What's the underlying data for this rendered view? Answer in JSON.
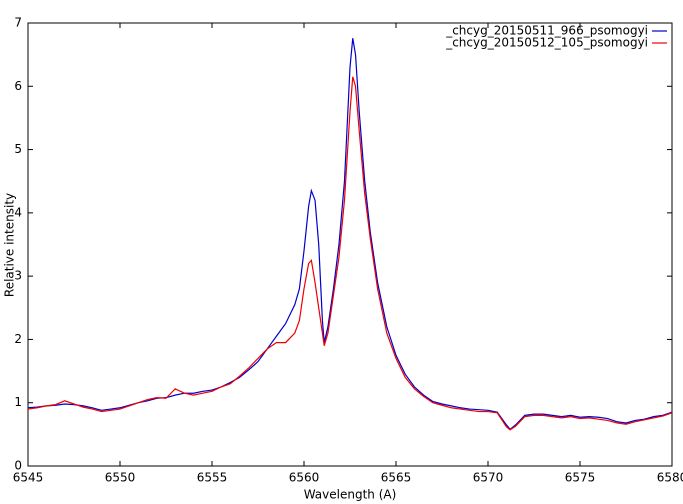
{
  "chart_data": {
    "type": "line",
    "xlabel": "Wavelength (A)",
    "ylabel": "Relative intensity",
    "x": [
      6545,
      6545.5,
      6546,
      6546.5,
      6547,
      6547.5,
      6548,
      6548.5,
      6549,
      6549.5,
      6550,
      6550.5,
      6551,
      6551.5,
      6552,
      6552.5,
      6553,
      6553.5,
      6554,
      6554.5,
      6555,
      6555.5,
      6556,
      6556.5,
      6557,
      6557.5,
      6558,
      6558.5,
      6559,
      6559.5,
      6559.75,
      6560,
      6560.25,
      6560.4,
      6560.6,
      6560.8,
      6561,
      6561.1,
      6561.3,
      6561.6,
      6561.9,
      6562.2,
      6562.5,
      6562.65,
      6562.8,
      6563,
      6563.3,
      6563.6,
      6564,
      6564.5,
      6565,
      6565.5,
      6566,
      6566.5,
      6567,
      6567.5,
      6568,
      6568.5,
      6569,
      6569.5,
      6570,
      6570.5,
      6571,
      6571.2,
      6571.5,
      6572,
      6572.5,
      6573,
      6573.5,
      6574,
      6574.5,
      6575,
      6575.5,
      6576,
      6576.5,
      6577,
      6577.5,
      6578,
      6578.5,
      6579,
      6579.5,
      6580
    ],
    "series": [
      {
        "name": "_chcyg_20150511_966_psomogyi",
        "color": "#0000cc",
        "values": [
          0.92,
          0.93,
          0.95,
          0.96,
          0.98,
          0.97,
          0.95,
          0.92,
          0.88,
          0.9,
          0.92,
          0.96,
          1.0,
          1.03,
          1.07,
          1.08,
          1.12,
          1.15,
          1.15,
          1.18,
          1.2,
          1.25,
          1.32,
          1.4,
          1.52,
          1.65,
          1.85,
          2.05,
          2.25,
          2.55,
          2.8,
          3.4,
          4.1,
          4.35,
          4.2,
          3.5,
          2.3,
          1.95,
          2.2,
          2.8,
          3.5,
          4.5,
          6.3,
          6.76,
          6.5,
          5.6,
          4.5,
          3.7,
          2.9,
          2.2,
          1.75,
          1.45,
          1.25,
          1.12,
          1.02,
          0.98,
          0.95,
          0.92,
          0.9,
          0.89,
          0.88,
          0.85,
          0.65,
          0.58,
          0.65,
          0.8,
          0.82,
          0.82,
          0.8,
          0.78,
          0.8,
          0.77,
          0.78,
          0.77,
          0.75,
          0.7,
          0.68,
          0.72,
          0.74,
          0.78,
          0.8,
          0.85
        ]
      },
      {
        "name": "_chcyg_20150512_105_psomogyi",
        "color": "#ee0000",
        "values": [
          0.9,
          0.92,
          0.95,
          0.97,
          1.03,
          0.98,
          0.93,
          0.9,
          0.86,
          0.88,
          0.9,
          0.95,
          1.0,
          1.05,
          1.08,
          1.07,
          1.22,
          1.15,
          1.12,
          1.15,
          1.18,
          1.25,
          1.3,
          1.42,
          1.55,
          1.7,
          1.85,
          1.95,
          1.95,
          2.1,
          2.3,
          2.8,
          3.2,
          3.25,
          2.9,
          2.5,
          2.1,
          1.9,
          2.1,
          2.7,
          3.3,
          4.2,
          5.6,
          6.15,
          6.0,
          5.3,
          4.3,
          3.6,
          2.8,
          2.1,
          1.7,
          1.4,
          1.22,
          1.1,
          1.0,
          0.96,
          0.92,
          0.9,
          0.88,
          0.86,
          0.86,
          0.84,
          0.62,
          0.57,
          0.63,
          0.78,
          0.8,
          0.8,
          0.78,
          0.76,
          0.78,
          0.75,
          0.76,
          0.74,
          0.72,
          0.68,
          0.66,
          0.7,
          0.73,
          0.76,
          0.79,
          0.84
        ]
      }
    ],
    "xlim": [
      6545,
      6580
    ],
    "xticks": [
      6545,
      6550,
      6555,
      6560,
      6565,
      6570,
      6575,
      6580
    ],
    "ylim": [
      0,
      7
    ],
    "yticks": [
      0,
      1,
      2,
      3,
      4,
      5,
      6,
      7
    ],
    "legend": "top-right"
  }
}
